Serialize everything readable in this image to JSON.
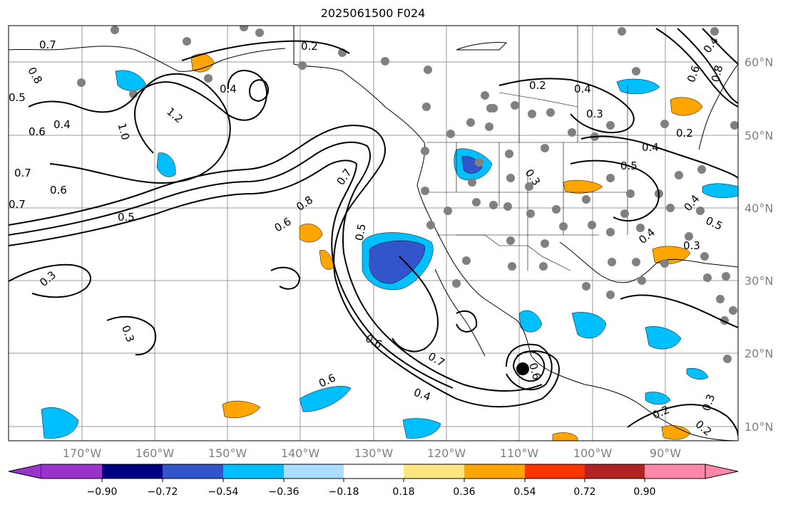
{
  "title": "2025061500 F024",
  "map": {
    "projection": "PlateCarree",
    "extent": {
      "lon_min": -180,
      "lon_max": -80,
      "lat_min": 8,
      "lat_max": 65
    },
    "grid": true,
    "lat_labels": [
      "10°N",
      "20°N",
      "30°N",
      "40°N",
      "50°N",
      "60°N"
    ],
    "lon_labels": [
      "170°W",
      "160°W",
      "150°W",
      "140°W",
      "130°W",
      "120°W",
      "110°W",
      "100°W",
      "90°W"
    ],
    "colors": {
      "ocean": "#ffffff",
      "land_outline": "#000000",
      "grid": "#999999",
      "station": "#808080"
    }
  },
  "colorbar": {
    "ticks": [
      "−0.90",
      "−0.72",
      "−0.54",
      "−0.36",
      "−0.18",
      "0.18",
      "0.36",
      "0.54",
      "0.72",
      "0.90"
    ],
    "colors": [
      "#9933cc",
      "#000080",
      "#3355cc",
      "#00bfff",
      "#aaddff",
      "#ffffff",
      "#ffe680",
      "#ffa500",
      "#ff3300",
      "#b22222",
      "#ff88aa"
    ],
    "extend": "both"
  },
  "contour_labels": [
    "0.7",
    "0.2",
    "0.8",
    "0.5",
    "0.4",
    "0.6",
    "1.0",
    "1.2",
    "0.7",
    "0.6",
    "0.5",
    "0.4",
    "0.7",
    "0.6",
    "0.8",
    "0.7",
    "0.5",
    "0.6",
    "0.3",
    "0.3",
    "0.6",
    "0.7",
    "0.6",
    "0.4",
    "0.2",
    "0.4",
    "0.3",
    "0.2",
    "0.4",
    "0.5",
    "0.3",
    "0.4",
    "0.5",
    "0.4",
    "0.3",
    "0.2",
    "0.3",
    "0.2",
    "0.6",
    "0.4",
    "0.8"
  ]
}
